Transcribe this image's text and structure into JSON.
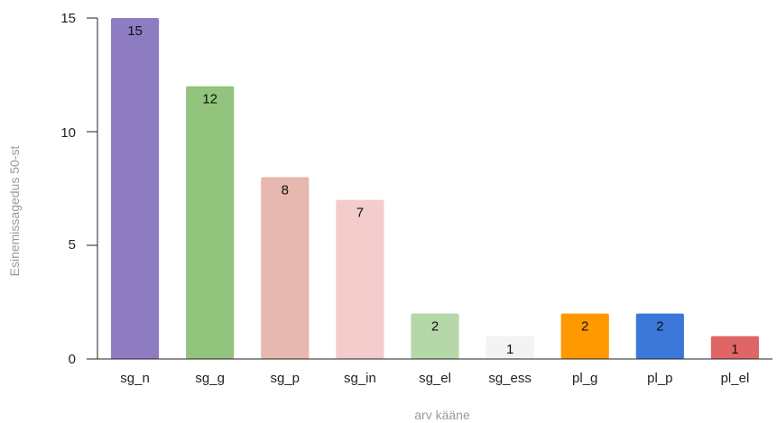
{
  "chart_data": {
    "type": "bar",
    "xlabel": "arv  kääne",
    "ylabel": "Esinemissagedus 50-st",
    "ylim": [
      0,
      15
    ],
    "yticks": [
      "0",
      "5",
      "10",
      "15"
    ],
    "grid": false,
    "categories": [
      "sg_n",
      "sg_g",
      "sg_p",
      "sg_in",
      "sg_el",
      "sg_ess",
      "pl_g",
      "pl_p",
      "pl_el"
    ],
    "values": [
      15,
      12,
      8,
      7,
      2,
      1,
      2,
      2,
      1
    ],
    "value_labels": [
      "15",
      "12",
      "8",
      "7",
      "2",
      "1",
      "2",
      "2",
      "1"
    ],
    "colors": [
      "#8e7cc3",
      "#93c47d",
      "#e6b8af",
      "#f4cccc",
      "#b6d7a8",
      "#f3f3f3",
      "#ff9900",
      "#3c78d8",
      "#e06666"
    ]
  }
}
